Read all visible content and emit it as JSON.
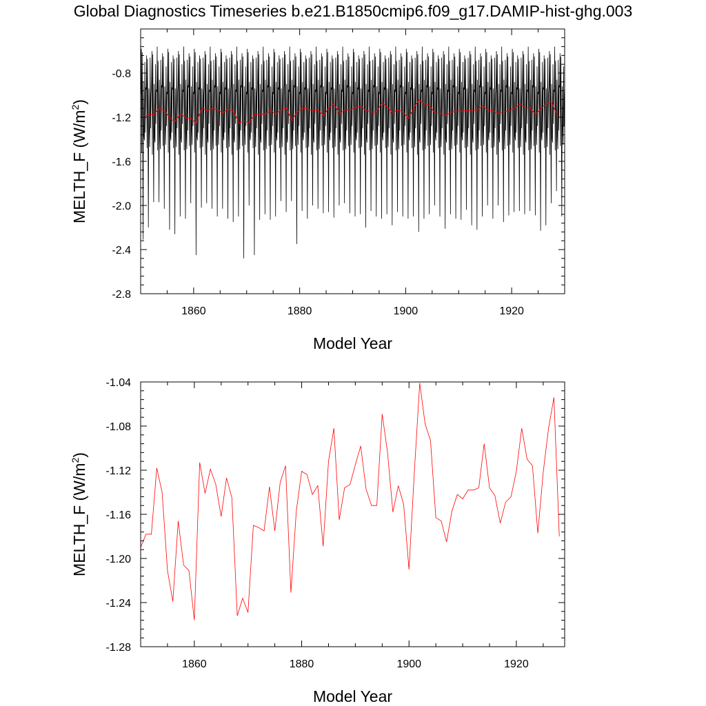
{
  "title": "Global Diagnostics Timeseries b.e21.B1850cmip6.f09_g17.DAMIP-hist-ghg.003",
  "colors": {
    "monthly": "#000000",
    "annual": "#ff0000",
    "axes": "#000000"
  },
  "chart_data": [
    {
      "type": "line",
      "panel": "top",
      "xlabel": "Model Year",
      "ylabel": "MELTH_F (W/m",
      "ylabel_sup": "2",
      "ylabel_tail": ")",
      "xlim": [
        1850,
        1930
      ],
      "ylim": [
        -2.8,
        -0.4
      ],
      "xticks": [
        "1860",
        "1880",
        "1900",
        "1920"
      ],
      "xtick_values": [
        1860,
        1880,
        1900,
        1920
      ],
      "yticks": [
        "-0.8",
        "-1.2",
        "-1.6",
        "-2.0",
        "-2.4",
        "-2.8"
      ],
      "ytick_values": [
        -0.8,
        -1.2,
        -1.6,
        -2.0,
        -2.4,
        -2.8
      ],
      "monthly_pattern": [
        -0.95,
        -0.6,
        -1.5,
        -0.65,
        -1.25,
        -2.0,
        -0.9,
        -1.35,
        -1.45,
        -0.7,
        -1.3,
        -0.95
      ],
      "annual_minima": [
        -2.31,
        -2.2,
        -1.97,
        -1.97,
        -2.03,
        -2.22,
        -2.26,
        -2.1,
        -2.12,
        -1.98,
        -2.45,
        -2.02,
        -1.98,
        -2.03,
        -2.1,
        -2.03,
        -2.12,
        -2.15,
        -2.1,
        -2.48,
        -2.0,
        -2.45,
        -2.13,
        -2.08,
        -2.13,
        -2.1,
        -1.96,
        -2.06,
        -1.96,
        -2.35,
        -2.05,
        -2.12,
        -2.0,
        -2.03,
        -2.07,
        -2.06,
        -2.11,
        -2.0,
        -1.98,
        -2.07,
        -2.1,
        -2.08,
        -2.2,
        -2.05,
        -2.1,
        -2.12,
        -2.08,
        -2.18,
        -2.06,
        -2.1,
        -2.12,
        -2.1,
        -2.24,
        -2.12,
        -2.08,
        -2.0,
        -2.1,
        -2.21,
        -2.08,
        -2.12,
        -2.13,
        -2.04,
        -2.18,
        -2.22,
        -2.1,
        -2.0,
        -2.12,
        -2.0,
        -2.15,
        -2.09,
        -2.06,
        -2.05,
        -2.08,
        -2.05,
        -2.09,
        -2.23,
        -2.18,
        -1.98,
        -1.87,
        -2.1
      ],
      "series": [
        {
          "name": "",
          "resolution": "monthly",
          "derived_from": "annual_minima+monthly_pattern"
        },
        {
          "name": "",
          "resolution": "annual",
          "values_ref": "annual_means"
        }
      ]
    },
    {
      "type": "line",
      "panel": "bottom",
      "xlabel": "Model Year",
      "ylabel": "MELTH_F (W/m",
      "ylabel_sup": "2",
      "ylabel_tail": ")",
      "xlim": [
        1850,
        1929
      ],
      "ylim": [
        -1.28,
        -1.04
      ],
      "xticks": [
        "1860",
        "1880",
        "1900",
        "1920"
      ],
      "xtick_values": [
        1860,
        1880,
        1900,
        1920
      ],
      "yticks": [
        "-1.04",
        "-1.08",
        "-1.12",
        "-1.16",
        "-1.20",
        "-1.24",
        "-1.28"
      ],
      "ytick_values": [
        -1.04,
        -1.08,
        -1.12,
        -1.16,
        -1.2,
        -1.24,
        -1.28
      ],
      "x_start": 1850,
      "annual_means": [
        -1.19,
        -1.178,
        -1.178,
        -1.118,
        -1.14,
        -1.211,
        -1.239,
        -1.166,
        -1.206,
        -1.211,
        -1.256,
        -1.113,
        -1.141,
        -1.119,
        -1.133,
        -1.162,
        -1.127,
        -1.145,
        -1.252,
        -1.236,
        -1.249,
        -1.17,
        -1.172,
        -1.175,
        -1.135,
        -1.175,
        -1.131,
        -1.116,
        -1.231,
        -1.157,
        -1.121,
        -1.124,
        -1.142,
        -1.134,
        -1.189,
        -1.112,
        -1.082,
        -1.165,
        -1.136,
        -1.133,
        -1.115,
        -1.098,
        -1.137,
        -1.152,
        -1.152,
        -1.069,
        -1.104,
        -1.158,
        -1.134,
        -1.151,
        -1.21,
        -1.121,
        -1.041,
        -1.078,
        -1.093,
        -1.163,
        -1.166,
        -1.185,
        -1.157,
        -1.142,
        -1.146,
        -1.138,
        -1.138,
        -1.136,
        -1.096,
        -1.136,
        -1.143,
        -1.168,
        -1.149,
        -1.144,
        -1.121,
        -1.082,
        -1.11,
        -1.116,
        -1.177,
        -1.122,
        -1.082,
        -1.054,
        -1.18
      ]
    }
  ]
}
